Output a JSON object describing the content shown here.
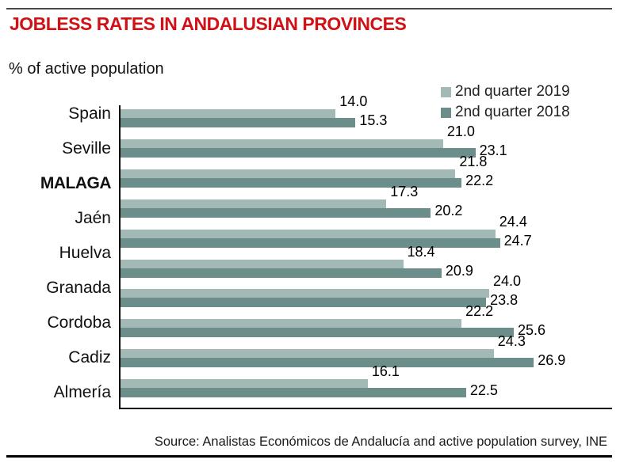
{
  "title": "JOBLESS RATES IN ANDALUSIAN PROVINCES",
  "subtitle": "% of active population",
  "source": "Source: Analistas Económicos de Andalucía and active population survey, INE",
  "colors": {
    "title_red": "#d01217",
    "bar_2019": "#a2b9b6",
    "bar_2018": "#6b8e8b",
    "axis": "#000000"
  },
  "chart_data": {
    "type": "bar",
    "orientation": "horizontal",
    "title": "JOBLESS RATES IN ANDALUSIAN PROVINCES",
    "xlabel": "% of active population",
    "ylabel": "",
    "xlim": [
      0,
      32
    ],
    "grid": false,
    "legend_position": "top-right",
    "categories": [
      "Spain",
      "Seville",
      "MALAGA",
      "Jaén",
      "Huelva",
      "Granada",
      "Cordoba",
      "Cadiz",
      "Almería"
    ],
    "emphasized_category": "MALAGA",
    "series": [
      {
        "name": "2nd quarter 2019",
        "color": "#a2b9b6",
        "values": [
          14.0,
          21.0,
          21.8,
          17.3,
          24.4,
          18.4,
          24.0,
          22.2,
          24.3,
          16.1
        ]
      },
      {
        "name": "2nd quarter 2018",
        "color": "#6b8e8b",
        "values": [
          15.3,
          23.1,
          22.2,
          20.2,
          24.7,
          20.9,
          23.8,
          25.6,
          26.9,
          22.5
        ]
      }
    ],
    "value_labels_shown": true,
    "note": "10 bar pairs are rendered while 9 category labels are visible on the axis; labels drift slightly relative to bar rows in the original graphic"
  }
}
